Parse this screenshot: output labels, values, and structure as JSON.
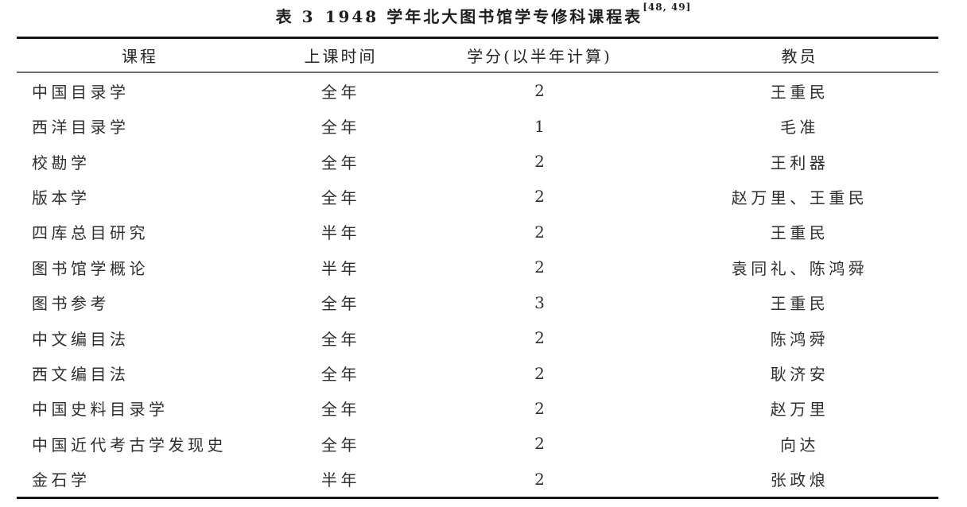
{
  "title": {
    "label": "表 3",
    "text": "1948 学年北大图书馆学专修科课程表",
    "citation": "[48, 49]"
  },
  "table": {
    "headers": {
      "course": "课程",
      "time": "上课时间",
      "credits": "学分(以半年计算)",
      "teacher": "教员"
    },
    "rows": [
      {
        "course": "中国目录学",
        "time": "全年",
        "credits": "2",
        "teacher": "王重民"
      },
      {
        "course": "西洋目录学",
        "time": "全年",
        "credits": "1",
        "teacher": "毛准"
      },
      {
        "course": "校勘学",
        "time": "全年",
        "credits": "2",
        "teacher": "王利器"
      },
      {
        "course": "版本学",
        "time": "全年",
        "credits": "2",
        "teacher": "赵万里、王重民"
      },
      {
        "course": "四库总目研究",
        "time": "半年",
        "credits": "2",
        "teacher": "王重民"
      },
      {
        "course": "图书馆学概论",
        "time": "半年",
        "credits": "2",
        "teacher": "袁同礼、陈鸿舜"
      },
      {
        "course": "图书参考",
        "time": "全年",
        "credits": "3",
        "teacher": "王重民"
      },
      {
        "course": "中文编目法",
        "time": "全年",
        "credits": "2",
        "teacher": "陈鸿舜"
      },
      {
        "course": "西文编目法",
        "time": "全年",
        "credits": "2",
        "teacher": "耿济安"
      },
      {
        "course": "中国史料目录学",
        "time": "全年",
        "credits": "2",
        "teacher": "赵万里"
      },
      {
        "course": "中国近代考古学发现史",
        "time": "全年",
        "credits": "2",
        "teacher": "向达"
      },
      {
        "course": "金石学",
        "time": "半年",
        "credits": "2",
        "teacher": "张政烺"
      }
    ]
  }
}
